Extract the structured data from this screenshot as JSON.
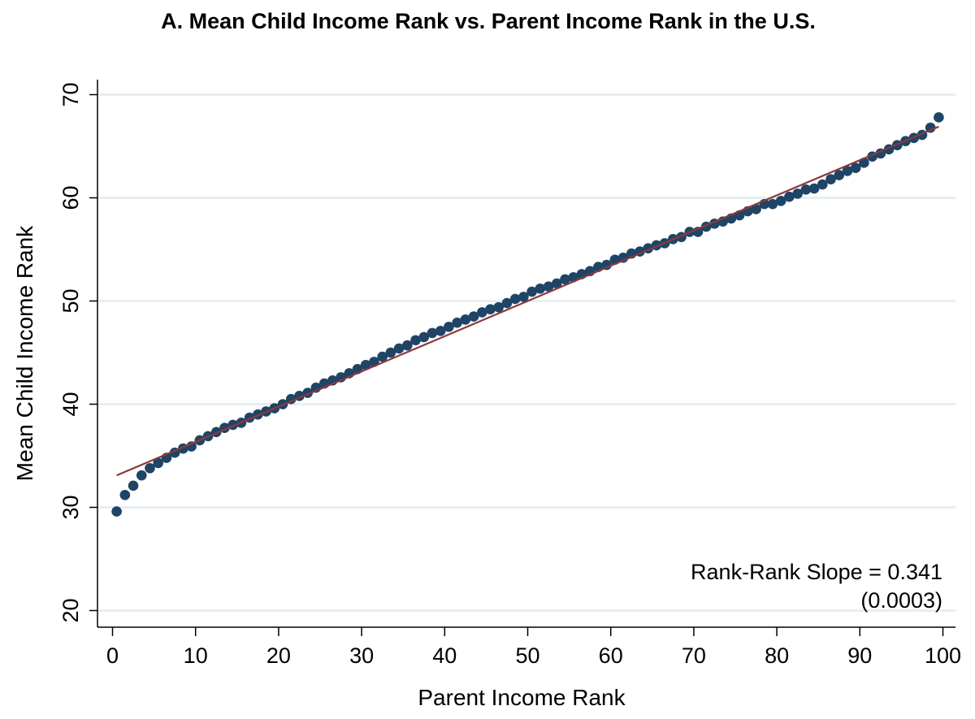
{
  "chart_data": {
    "type": "scatter",
    "title": "A. Mean Child Income Rank vs. Parent Income Rank in the U.S.",
    "xlabel": "Parent Income Rank",
    "ylabel": "Mean Child Income Rank",
    "xlim": [
      0,
      100
    ],
    "ylim": [
      20,
      70
    ],
    "xticks": [
      "0",
      "10",
      "20",
      "30",
      "40",
      "50",
      "60",
      "70",
      "80",
      "90",
      "100"
    ],
    "yticks": [
      "20",
      "30",
      "40",
      "50",
      "60",
      "70"
    ],
    "grid": "horizontal",
    "colors": {
      "points": "#1f4466",
      "fit_line": "#8b3a3a",
      "grid": "#e3ecf0"
    },
    "fit_line": {
      "x": [
        0.5,
        99.5
      ],
      "y": [
        33.1,
        66.9
      ]
    },
    "annotation": {
      "line1": "Rank-Rank Slope = 0.341",
      "line2": "(0.0003)"
    },
    "series": [
      {
        "x": [
          0.5,
          1.5,
          2.5,
          3.5,
          4.5,
          5.5,
          6.5,
          7.5,
          8.5,
          9.5,
          10.5,
          11.5,
          12.5,
          13.5,
          14.5,
          15.5,
          16.5,
          17.5,
          18.5,
          19.5,
          20.5,
          21.5,
          22.5,
          23.5,
          24.5,
          25.5,
          26.5,
          27.5,
          28.5,
          29.5,
          30.5,
          31.5,
          32.5,
          33.5,
          34.5,
          35.5,
          36.5,
          37.5,
          38.5,
          39.5,
          40.5,
          41.5,
          42.5,
          43.5,
          44.5,
          45.5,
          46.5,
          47.5,
          48.5,
          49.5,
          50.5,
          51.5,
          52.5,
          53.5,
          54.5,
          55.5,
          56.5,
          57.5,
          58.5,
          59.5,
          60.5,
          61.5,
          62.5,
          63.5,
          64.5,
          65.5,
          66.5,
          67.5,
          68.5,
          69.5,
          70.5,
          71.5,
          72.5,
          73.5,
          74.5,
          75.5,
          76.5,
          77.5,
          78.5,
          79.5,
          80.5,
          81.5,
          82.5,
          83.5,
          84.5,
          85.5,
          86.5,
          87.5,
          88.5,
          89.5,
          90.5,
          91.5,
          92.5,
          93.5,
          94.5,
          95.5,
          96.5,
          97.5,
          98.5,
          99.5
        ],
        "y": [
          29.6,
          31.2,
          32.1,
          33.1,
          33.8,
          34.3,
          34.8,
          35.3,
          35.7,
          35.9,
          36.5,
          36.9,
          37.3,
          37.7,
          38.0,
          38.2,
          38.7,
          39.0,
          39.3,
          39.6,
          40.0,
          40.5,
          40.8,
          41.1,
          41.6,
          42.0,
          42.3,
          42.6,
          43.0,
          43.4,
          43.8,
          44.1,
          44.6,
          45.0,
          45.4,
          45.7,
          46.2,
          46.5,
          46.9,
          47.1,
          47.5,
          47.9,
          48.2,
          48.5,
          48.9,
          49.2,
          49.4,
          49.8,
          50.2,
          50.4,
          50.9,
          51.2,
          51.4,
          51.7,
          52.1,
          52.3,
          52.6,
          52.9,
          53.3,
          53.5,
          54.0,
          54.2,
          54.6,
          54.8,
          55.1,
          55.4,
          55.6,
          56.0,
          56.2,
          56.7,
          56.7,
          57.2,
          57.5,
          57.7,
          58.0,
          58.3,
          58.7,
          58.9,
          59.4,
          59.4,
          59.7,
          60.1,
          60.4,
          60.8,
          60.9,
          61.3,
          61.8,
          62.2,
          62.6,
          62.9,
          63.4,
          64.0,
          64.3,
          64.7,
          65.1,
          65.5,
          65.8,
          66.1,
          66.8,
          67.8
        ]
      }
    ]
  }
}
